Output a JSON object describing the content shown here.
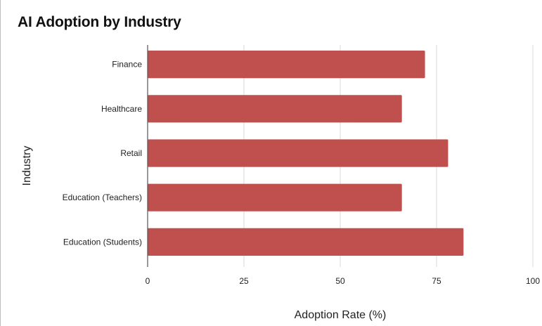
{
  "chart_data": {
    "type": "bar",
    "orientation": "horizontal",
    "title": "AI Adoption by Industry",
    "xlabel": "Adoption Rate (%)",
    "ylabel": "Industry",
    "categories": [
      "Finance",
      "Healthcare",
      "Retail",
      "Education (Teachers)",
      "Education (Students)"
    ],
    "values": [
      72,
      66,
      78,
      66,
      82
    ],
    "xlim": [
      0,
      100
    ],
    "xticks": [
      0,
      25,
      50,
      75,
      100
    ],
    "grid": true,
    "bar_color": "#c0504d"
  }
}
